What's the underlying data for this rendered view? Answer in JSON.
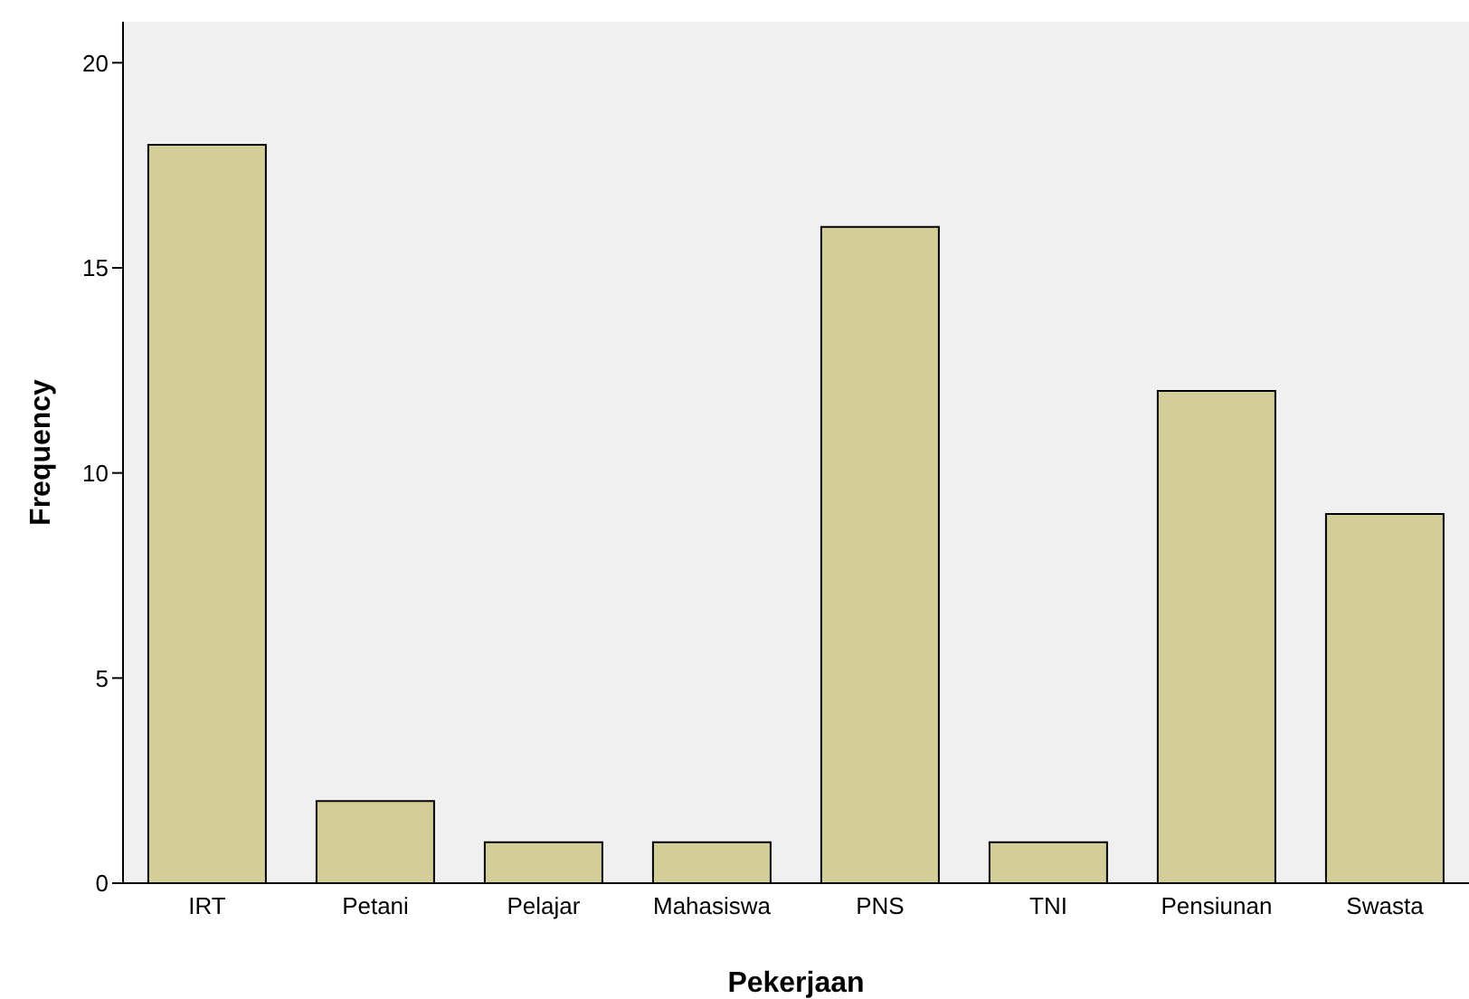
{
  "chart_data": {
    "type": "bar",
    "xlabel": "Pekerjaan",
    "ylabel": "Frequency",
    "categories": [
      "IRT",
      "Petani",
      "Pelajar",
      "Mahasiswa",
      "PNS",
      "TNI",
      "Pensiunan",
      "Swasta"
    ],
    "values": [
      18,
      2,
      1,
      1,
      16,
      1,
      12,
      9
    ],
    "color": "#d3ce97",
    "ylim": [
      0,
      21
    ],
    "yticks": [
      0,
      5,
      10,
      15,
      20
    ],
    "grid": false
  }
}
